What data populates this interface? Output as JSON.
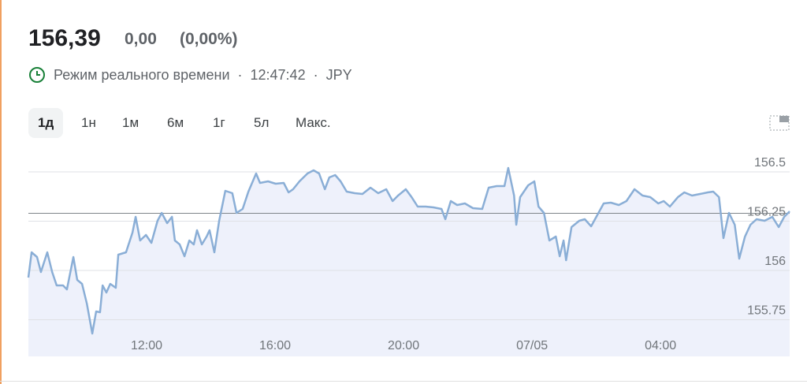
{
  "header": {
    "price": "156,39",
    "change": "0,00",
    "change_pct": "(0,00%)",
    "status": "Режим реального времени",
    "separator": "·",
    "time": "12:47:42",
    "currency": "JPY"
  },
  "tabs": [
    "1д",
    "1н",
    "1м",
    "6м",
    "1г",
    "5л",
    "Макс."
  ],
  "chart_data": {
    "type": "line",
    "x": [
      8.32,
      8.42,
      8.59,
      8.71,
      8.91,
      9.06,
      9.2,
      9.4,
      9.52,
      9.72,
      9.84,
      9.99,
      10.14,
      10.31,
      10.43,
      10.55,
      10.63,
      10.75,
      10.87,
      11.04,
      11.12,
      11.36,
      11.56,
      11.66,
      11.8,
      11.98,
      12.15,
      12.34,
      12.47,
      12.64,
      12.79,
      12.88,
      13.03,
      13.18,
      13.33,
      13.47,
      13.57,
      13.72,
      13.87,
      13.96,
      14.11,
      14.26,
      14.45,
      14.67,
      14.8,
      14.99,
      15.17,
      15.41,
      15.53,
      15.78,
      16.02,
      16.27,
      16.42,
      16.56,
      16.76,
      17.01,
      17.2,
      17.37,
      17.55,
      17.69,
      17.87,
      18.04,
      18.23,
      18.48,
      18.72,
      18.97,
      19.21,
      19.46,
      19.66,
      19.83,
      20.07,
      20.25,
      20.44,
      20.69,
      20.93,
      21.18,
      21.3,
      21.47,
      21.67,
      21.91,
      22.16,
      22.45,
      22.65,
      22.9,
      23.14,
      23.26,
      23.44,
      23.51,
      23.63,
      23.88,
      24.07,
      24.2,
      24.37,
      24.54,
      24.74,
      24.86,
      24.98,
      25.06,
      25.23,
      25.47,
      25.64,
      25.84,
      26.04,
      26.23,
      26.45,
      26.7,
      26.94,
      27.19,
      27.44,
      27.68,
      27.93,
      28.1,
      28.29,
      28.54,
      28.74,
      28.98,
      29.23,
      29.47,
      29.64,
      29.82,
      29.96,
      30.13,
      30.31,
      30.45,
      30.63,
      30.8,
      30.99,
      31.24,
      31.48,
      31.68,
      31.85,
      32.02
    ],
    "values": [
      155.964,
      156.092,
      156.068,
      155.992,
      156.092,
      155.992,
      155.924,
      155.924,
      155.904,
      156.068,
      155.952,
      155.932,
      155.832,
      155.68,
      155.792,
      155.788,
      155.924,
      155.888,
      155.932,
      155.912,
      156.08,
      156.092,
      156.192,
      156.272,
      156.152,
      156.18,
      156.14,
      156.252,
      156.292,
      156.24,
      156.272,
      156.152,
      156.132,
      156.072,
      156.152,
      156.132,
      156.204,
      156.132,
      156.172,
      156.204,
      156.092,
      156.252,
      156.404,
      156.392,
      156.292,
      156.312,
      156.4,
      156.492,
      156.444,
      156.452,
      156.44,
      156.444,
      156.396,
      156.412,
      156.452,
      156.492,
      156.508,
      156.492,
      156.412,
      156.472,
      156.484,
      156.452,
      156.4,
      156.392,
      156.388,
      156.42,
      156.392,
      156.412,
      156.352,
      156.38,
      156.412,
      156.372,
      156.324,
      156.324,
      156.32,
      156.312,
      156.26,
      156.352,
      156.332,
      156.34,
      156.316,
      156.312,
      156.42,
      156.428,
      156.428,
      156.52,
      156.38,
      156.232,
      156.372,
      156.432,
      156.452,
      156.324,
      156.292,
      156.152,
      156.172,
      156.072,
      156.152,
      156.052,
      156.22,
      156.252,
      156.26,
      156.224,
      156.284,
      156.34,
      156.344,
      156.332,
      156.352,
      156.412,
      156.38,
      156.372,
      156.34,
      156.352,
      156.324,
      156.372,
      156.396,
      156.38,
      156.388,
      156.396,
      156.4,
      156.372,
      156.164,
      156.292,
      156.232,
      156.06,
      156.172,
      156.232,
      156.26,
      156.252,
      156.272,
      156.22,
      156.272,
      156.3
    ],
    "color": "#8aaed6",
    "fill": "#eef1fb",
    "reference": 156.29,
    "xlim": [
      8.32,
      32.02
    ],
    "xticks": [
      {
        "value": 12,
        "label": "12:00"
      },
      {
        "value": 16,
        "label": "16:00"
      },
      {
        "value": 20,
        "label": "20:00"
      },
      {
        "value": 24,
        "label": "07/05"
      },
      {
        "value": 28,
        "label": "04:00"
      }
    ],
    "ylim": [
      155.564,
      156.532
    ],
    "yticks": [
      156.5,
      156.25,
      156,
      155.75
    ],
    "grid": true
  }
}
